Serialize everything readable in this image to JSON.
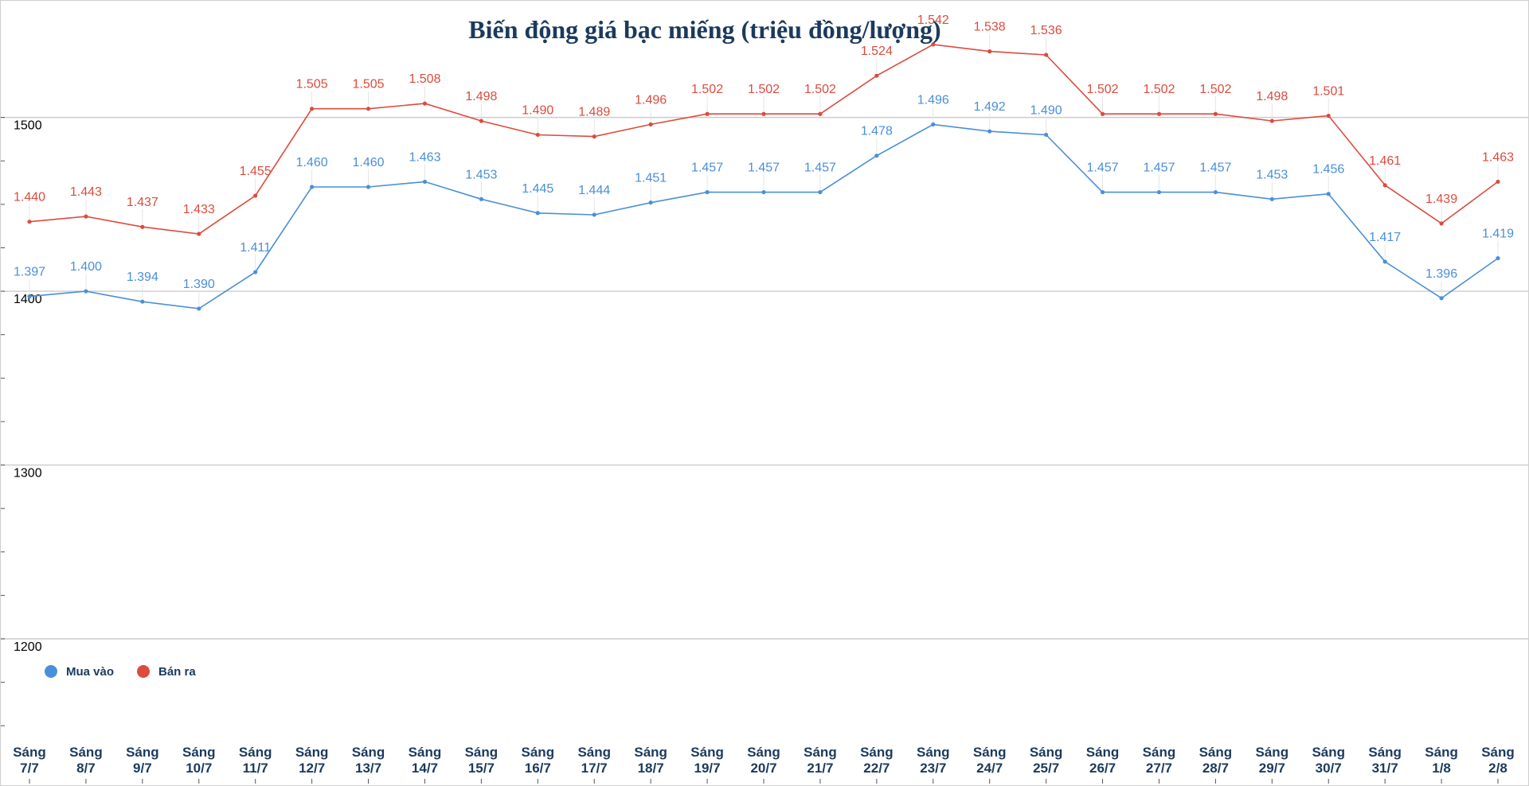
{
  "colors": {
    "buy": "#4a8fd9",
    "sell": "#dd4b3e",
    "title": "#1b3a5c",
    "grid": "#cccccc"
  },
  "chart_data": {
    "type": "line",
    "title": "Biến động giá bạc miếng (triệu đồng/lượng)",
    "xlabel": "",
    "ylabel": "",
    "ylim": [
      1135,
      1525
    ],
    "yticks": [
      1200,
      1300,
      1400,
      1500
    ],
    "ytick_labels": [
      "1200",
      "1300",
      "1400",
      "1500"
    ],
    "grid": true,
    "legend_position": "bottom-left",
    "categories": [
      "Sáng\n7/7",
      "Sáng\n8/7",
      "Sáng\n9/7",
      "Sáng\n10/7",
      "Sáng\n11/7",
      "Sáng\n12/7",
      "Sáng\n13/7",
      "Sáng\n14/7",
      "Sáng\n15/7",
      "Sáng\n16/7",
      "Sáng\n17/7",
      "Sáng\n18/7",
      "Sáng\n19/7",
      "Sáng\n20/7",
      "Sáng\n21/7",
      "Sáng\n22/7",
      "Sáng\n23/7",
      "Sáng\n24/7",
      "Sáng\n25/7",
      "Sáng\n26/7",
      "Sáng\n27/7",
      "Sáng\n28/7",
      "Sáng\n29/7",
      "Sáng\n30/7",
      "Sáng\n31/7",
      "Sáng\n1/8",
      "Sáng\n2/8"
    ],
    "series": [
      {
        "name": "Mua vào",
        "values": [
          1397,
          1400,
          1394,
          1390,
          1411,
          1460,
          1460,
          1463,
          1453,
          1445,
          1444,
          1451,
          1457,
          1457,
          1457,
          1478,
          1496,
          1492,
          1490,
          1457,
          1457,
          1457,
          1453,
          1456,
          1417,
          1396,
          1419
        ],
        "labels": [
          "1.397",
          "1.400",
          "1.394",
          "1.390",
          "1.411",
          "1.460",
          "1.460",
          "1.463",
          "1.453",
          "1.445",
          "1.444",
          "1.451",
          "1.457",
          "1.457",
          "1.457",
          "1.478",
          "1.496",
          "1.492",
          "1.490",
          "1.457",
          "1.457",
          "1.457",
          "1.453",
          "1.456",
          "1.417",
          "1.396",
          "1.419"
        ]
      },
      {
        "name": "Bán ra",
        "values": [
          1440,
          1443,
          1437,
          1433,
          1455,
          1505,
          1505,
          1508,
          1498,
          1490,
          1489,
          1496,
          1502,
          1502,
          1502,
          1524,
          1542,
          1538,
          1536,
          1502,
          1502,
          1502,
          1498,
          1501,
          1461,
          1439,
          1463
        ],
        "labels": [
          "1.440",
          "1.443",
          "1.437",
          "1.433",
          "1.455",
          "1.505",
          "1.505",
          "1.508",
          "1.498",
          "1.490",
          "1.489",
          "1.496",
          "1.502",
          "1.502",
          "1.502",
          "1.524",
          "1.542",
          "1.538",
          "1.536",
          "1.502",
          "1.502",
          "1.502",
          "1.498",
          "1.501",
          "1.461",
          "1.439",
          "1.463"
        ]
      }
    ]
  }
}
